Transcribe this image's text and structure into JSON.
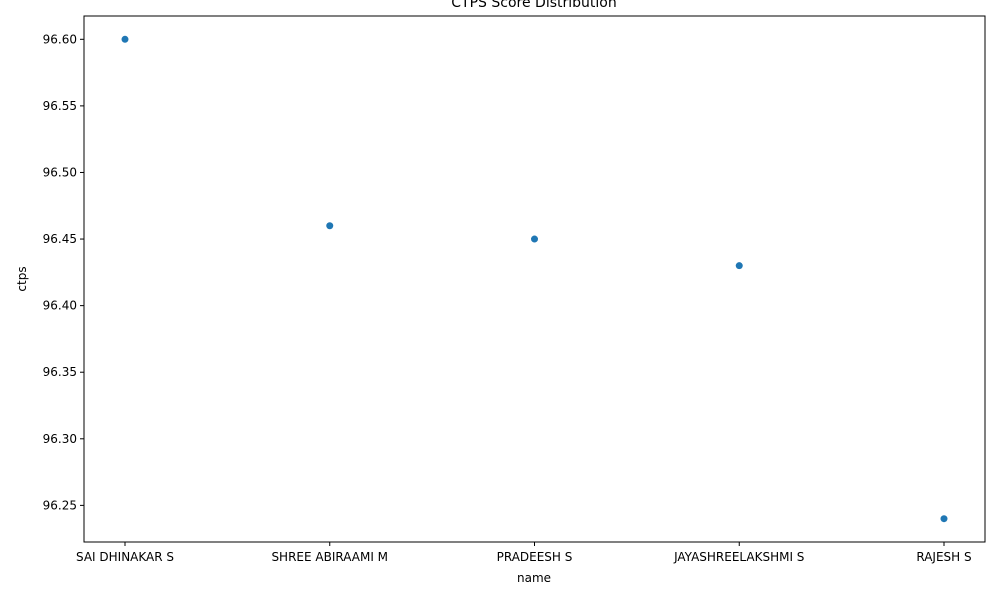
{
  "chart_data": {
    "type": "scatter",
    "title": "CTPS Score Distribution",
    "xlabel": "name",
    "ylabel": "ctps",
    "categories": [
      "SAI DHINAKAR S",
      "SHREE ABIRAAMI M",
      "PRADEESH S",
      "JAYASHREELAKSHMI S",
      "RAJESH S"
    ],
    "values": [
      96.6,
      96.46,
      96.45,
      96.43,
      96.24
    ],
    "ylim": [
      96.2225,
      96.6175
    ],
    "yticks": [
      "96.25",
      "96.30",
      "96.35",
      "96.40",
      "96.45",
      "96.50",
      "96.55",
      "96.60"
    ],
    "grid": false,
    "point_color": "#1f77b4"
  }
}
